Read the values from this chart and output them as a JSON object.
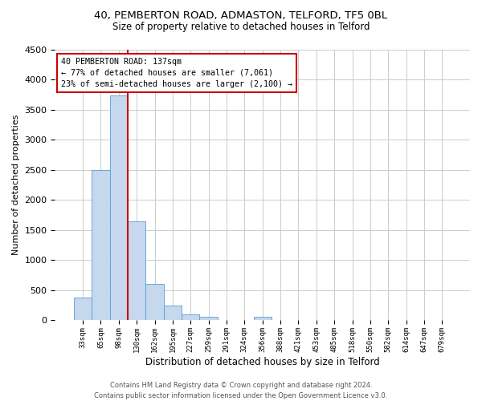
{
  "title1": "40, PEMBERTON ROAD, ADMASTON, TELFORD, TF5 0BL",
  "title2": "Size of property relative to detached houses in Telford",
  "xlabel": "Distribution of detached houses by size in Telford",
  "ylabel": "Number of detached properties",
  "bin_labels": [
    "33sqm",
    "65sqm",
    "98sqm",
    "130sqm",
    "162sqm",
    "195sqm",
    "227sqm",
    "259sqm",
    "291sqm",
    "324sqm",
    "356sqm",
    "388sqm",
    "421sqm",
    "453sqm",
    "485sqm",
    "518sqm",
    "550sqm",
    "582sqm",
    "614sqm",
    "647sqm",
    "679sqm"
  ],
  "bar_values": [
    380,
    2500,
    3740,
    1640,
    600,
    245,
    100,
    60,
    0,
    0,
    55,
    0,
    0,
    0,
    0,
    0,
    0,
    0,
    0,
    0,
    0
  ],
  "bar_color": "#c5d8ed",
  "bar_edge_color": "#5b9bd5",
  "annotation_line1": "40 PEMBERTON ROAD: 137sqm",
  "annotation_line2": "← 77% of detached houses are smaller (7,061)",
  "annotation_line3": "23% of semi-detached houses are larger (2,100) →",
  "vline_color": "#cc0000",
  "ylim": [
    0,
    4500
  ],
  "yticks": [
    0,
    500,
    1000,
    1500,
    2000,
    2500,
    3000,
    3500,
    4000,
    4500
  ],
  "footer_line1": "Contains HM Land Registry data © Crown copyright and database right 2024.",
  "footer_line2": "Contains public sector information licensed under the Open Government Licence v3.0.",
  "bg_color": "#ffffff",
  "grid_color": "#cccccc"
}
